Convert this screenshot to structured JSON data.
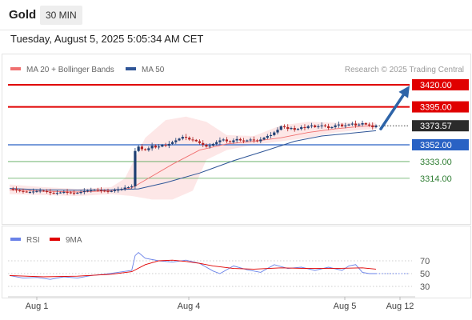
{
  "header": {
    "symbol": "Gold",
    "timeframe": "30 MIN",
    "datetime": "Tuesday, August 5, 2025 5:05:34 AM CET"
  },
  "colors": {
    "up": "#1f3f73",
    "down": "#b22222",
    "ma20": "#f07070",
    "ma50": "#2f5597",
    "bollinger": "#fde4e4",
    "resistance": "#e00000",
    "support_blue": "#2962c4",
    "support_green": "#5aaa5a",
    "rsi": "#6a82e8",
    "rsi_ma": "#e00000",
    "arrow": "#2e64a8"
  },
  "chart_data": [
    {
      "type": "candlestick",
      "legend": [
        "MA 20 + Bollinger Bands",
        "MA 50"
      ],
      "legend_position": "top-left",
      "copyright": "Research © 2025 Trading Central",
      "ylim": [
        3290,
        3430
      ],
      "x_ticks": [
        "Aug 1",
        "Aug 4",
        "Aug 5",
        "Aug 12"
      ],
      "last_price": 3373.57,
      "levels": [
        {
          "value": 3420.0,
          "label": "3420.00",
          "kind": "resistance"
        },
        {
          "value": 3395.0,
          "label": "3395.00",
          "kind": "resistance"
        },
        {
          "value": 3352.0,
          "label": "3352.00",
          "kind": "support_blue"
        },
        {
          "value": 3333.0,
          "label": "3333.00",
          "kind": "support_green"
        },
        {
          "value": 3314.0,
          "label": "3314.00",
          "kind": "support_green"
        }
      ],
      "price_path": [
        3302.0,
        3301.5,
        3300.5,
        3299.5,
        3299.0,
        3298.5,
        3298.5,
        3299.0,
        3299.5,
        3300.0,
        3299.5,
        3298.5,
        3297.5,
        3297.0,
        3297.5,
        3298.0,
        3298.5,
        3298.0,
        3297.5,
        3297.0,
        3297.5,
        3298.5,
        3299.5,
        3300.0,
        3300.5,
        3301.0,
        3300.5,
        3300.0,
        3299.5,
        3299.0,
        3299.5,
        3300.5,
        3301.0,
        3302.0,
        3303.5,
        3304.0,
        3305.0,
        3345.0,
        3350.0,
        3347.0,
        3346.0,
        3348.0,
        3351.0,
        3349.0,
        3350.0,
        3352.0,
        3351.0,
        3353.0,
        3355.0,
        3357.0,
        3359.0,
        3361.0,
        3360.0,
        3358.0,
        3357.5,
        3356.0,
        3354.0,
        3352.0,
        3350.0,
        3351.0,
        3353.0,
        3355.0,
        3357.0,
        3358.0,
        3356.0,
        3355.0,
        3357.0,
        3358.5,
        3357.0,
        3356.0,
        3357.0,
        3358.0,
        3357.0,
        3356.0,
        3358.0,
        3360.0,
        3362.0,
        3363.0,
        3366.0,
        3369.0,
        3373.0,
        3372.0,
        3370.0,
        3371.0,
        3369.0,
        3370.0,
        3372.0,
        3371.0,
        3373.0,
        3374.0,
        3372.0,
        3373.0,
        3374.0,
        3373.0,
        3371.0,
        3372.0,
        3374.0,
        3375.0,
        3373.0,
        3374.0,
        3375.0,
        3376.0,
        3374.0,
        3375.0,
        3376.5,
        3375.0,
        3374.0,
        3372.0,
        3373.57
      ],
      "ma20": [
        [
          0,
          3301.0
        ],
        [
          10,
          3299.5
        ],
        [
          20,
          3298.5
        ],
        [
          30,
          3300.0
        ],
        [
          36,
          3303.0
        ],
        [
          40,
          3312.0
        ],
        [
          48,
          3330.0
        ],
        [
          56,
          3346.0
        ],
        [
          64,
          3353.0
        ],
        [
          72,
          3356.0
        ],
        [
          80,
          3360.0
        ],
        [
          88,
          3366.0
        ],
        [
          96,
          3370.0
        ],
        [
          104,
          3373.0
        ],
        [
          108,
          3373.5
        ]
      ],
      "ma50": [
        [
          0,
          3302.5
        ],
        [
          10,
          3301.0
        ],
        [
          20,
          3300.5
        ],
        [
          30,
          3301.0
        ],
        [
          38,
          3302.0
        ],
        [
          46,
          3309.0
        ],
        [
          56,
          3320.0
        ],
        [
          66,
          3334.0
        ],
        [
          76,
          3346.0
        ],
        [
          84,
          3356.0
        ],
        [
          92,
          3362.0
        ],
        [
          100,
          3365.0
        ],
        [
          108,
          3368.0
        ]
      ],
      "bollinger": {
        "upper": [
          [
            0,
            3307.0
          ],
          [
            10,
            3304.0
          ],
          [
            20,
            3302.0
          ],
          [
            30,
            3304.0
          ],
          [
            34,
            3314.0
          ],
          [
            40,
            3360.0
          ],
          [
            46,
            3380.0
          ],
          [
            52,
            3384.0
          ],
          [
            58,
            3378.0
          ],
          [
            64,
            3363.0
          ],
          [
            72,
            3362.0
          ],
          [
            80,
            3374.0
          ],
          [
            88,
            3378.0
          ],
          [
            96,
            3377.0
          ],
          [
            104,
            3377.0
          ],
          [
            108,
            3377.0
          ]
        ],
        "lower": [
          [
            0,
            3296.0
          ],
          [
            10,
            3295.0
          ],
          [
            20,
            3294.0
          ],
          [
            30,
            3296.0
          ],
          [
            36,
            3294.0
          ],
          [
            42,
            3290.0
          ],
          [
            48,
            3290.0
          ],
          [
            54,
            3300.0
          ],
          [
            58,
            3335.0
          ],
          [
            64,
            3346.0
          ],
          [
            72,
            3352.0
          ],
          [
            80,
            3356.0
          ],
          [
            88,
            3360.0
          ],
          [
            96,
            3366.0
          ],
          [
            104,
            3369.0
          ],
          [
            108,
            3370.0
          ]
        ]
      }
    },
    {
      "type": "line",
      "legend": [
        "RSI",
        "9MA"
      ],
      "legend_position": "top-left",
      "ylim": [
        20,
        80
      ],
      "y_ticks": [
        70,
        50,
        30
      ],
      "rsi": [
        [
          0,
          47
        ],
        [
          4,
          43
        ],
        [
          8,
          44
        ],
        [
          12,
          41
        ],
        [
          16,
          45
        ],
        [
          20,
          43
        ],
        [
          24,
          47
        ],
        [
          28,
          49
        ],
        [
          32,
          52
        ],
        [
          36,
          55
        ],
        [
          37,
          78
        ],
        [
          38,
          83
        ],
        [
          40,
          74
        ],
        [
          44,
          70
        ],
        [
          48,
          68
        ],
        [
          52,
          71
        ],
        [
          56,
          66
        ],
        [
          60,
          54
        ],
        [
          62,
          50
        ],
        [
          66,
          62
        ],
        [
          70,
          56
        ],
        [
          74,
          52
        ],
        [
          78,
          64
        ],
        [
          82,
          58
        ],
        [
          86,
          60
        ],
        [
          90,
          55
        ],
        [
          94,
          60
        ],
        [
          98,
          55
        ],
        [
          100,
          62
        ],
        [
          102,
          64
        ],
        [
          104,
          52
        ],
        [
          106,
          50
        ],
        [
          108,
          50
        ]
      ],
      "rsi_ma": [
        [
          0,
          47
        ],
        [
          10,
          45
        ],
        [
          20,
          46
        ],
        [
          30,
          49
        ],
        [
          36,
          53
        ],
        [
          40,
          64
        ],
        [
          44,
          70
        ],
        [
          48,
          71
        ],
        [
          52,
          69
        ],
        [
          56,
          66
        ],
        [
          60,
          62
        ],
        [
          66,
          58
        ],
        [
          72,
          57
        ],
        [
          80,
          59
        ],
        [
          88,
          58
        ],
        [
          96,
          58
        ],
        [
          104,
          59
        ],
        [
          108,
          57
        ]
      ]
    }
  ]
}
